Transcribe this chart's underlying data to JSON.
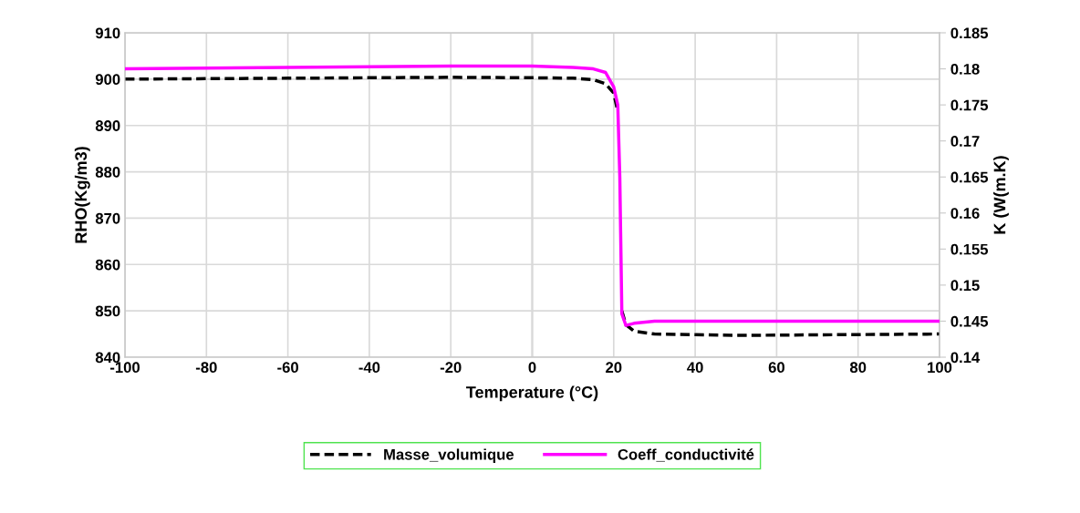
{
  "chart_data": {
    "type": "line",
    "xlabel": "Temperature (°C)",
    "ylabel": "RHO(Kg/m3)",
    "y2label": "K (W(m.K)",
    "xlim": [
      -100,
      100
    ],
    "xticks": [
      -100,
      -80,
      -60,
      -40,
      -20,
      0,
      20,
      40,
      60,
      80,
      100
    ],
    "ylim": [
      840,
      910
    ],
    "yticks": [
      840,
      850,
      860,
      870,
      880,
      890,
      900,
      910
    ],
    "y2lim": [
      0.14,
      0.185
    ],
    "y2ticks": [
      0.14,
      0.145,
      0.15,
      0.155,
      0.16,
      0.165,
      0.17,
      0.175,
      0.18,
      0.185
    ],
    "grid": true,
    "legend": "bottom",
    "series": [
      {
        "name": "Masse_volumique",
        "color": "#000000",
        "line_style": "dashed",
        "x": [
          -100,
          -60,
          -20,
          0,
          10,
          15,
          18,
          20,
          21,
          21.5,
          22,
          23,
          25,
          30,
          50,
          100
        ],
        "values": [
          900,
          900.2,
          900.4,
          900.3,
          900.2,
          899.9,
          899,
          897,
          893,
          null,
          850,
          847,
          845.6,
          845,
          844.7,
          845
        ]
      },
      {
        "name": "Coeff_conductivité",
        "color": "#ff00ff",
        "line_style": "solid",
        "axis": "y2",
        "x": [
          -100,
          -60,
          -20,
          0,
          10,
          15,
          18,
          20,
          21,
          21.5,
          22,
          23,
          25,
          30,
          50,
          100
        ],
        "values": [
          0.18,
          0.1802,
          0.1804,
          0.1804,
          0.1802,
          0.18,
          0.1795,
          0.1775,
          0.175,
          0.165,
          0.146,
          0.1444,
          0.1447,
          0.145,
          0.145,
          0.145
        ]
      }
    ]
  }
}
